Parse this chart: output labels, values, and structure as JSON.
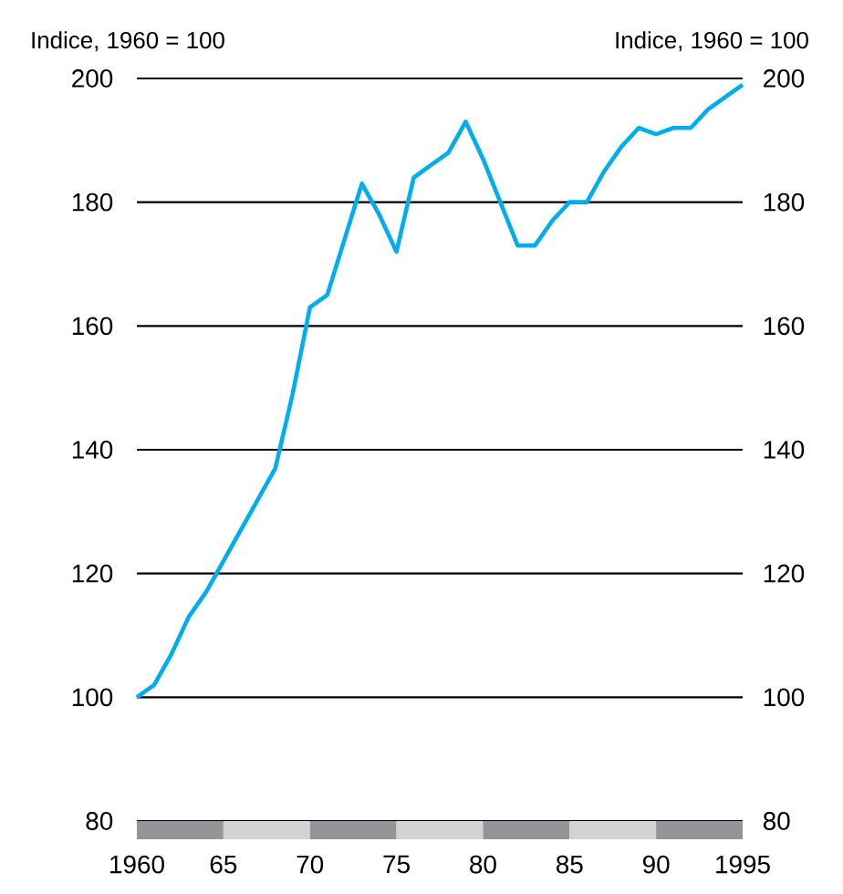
{
  "chart_data": {
    "type": "line",
    "ylabel": "Indice, 1960 = 100",
    "y2label": "Indice, 1960 = 100",
    "x": [
      1960,
      1961,
      1962,
      1963,
      1964,
      1965,
      1966,
      1967,
      1968,
      1969,
      1970,
      1971,
      1972,
      1973,
      1974,
      1975,
      1976,
      1977,
      1978,
      1979,
      1980,
      1981,
      1982,
      1983,
      1984,
      1985,
      1986,
      1987,
      1988,
      1989,
      1990,
      1991,
      1992,
      1993,
      1994,
      1995
    ],
    "series": [
      {
        "color": "#00aeef",
        "values": [
          100,
          102,
          107,
          113,
          117,
          122,
          127,
          132,
          137,
          149,
          163,
          165,
          174,
          183,
          178,
          172,
          184,
          186,
          188,
          193,
          187,
          180,
          173,
          173,
          177,
          180,
          180,
          185,
          189,
          192,
          191,
          192,
          192,
          195,
          197,
          199
        ]
      }
    ],
    "xlim": [
      1960,
      1995
    ],
    "xticks": [
      {
        "value": 1960,
        "label": "1960"
      },
      {
        "value": 1965,
        "label": "65"
      },
      {
        "value": 1970,
        "label": "70"
      },
      {
        "value": 1975,
        "label": "75"
      },
      {
        "value": 1980,
        "label": "80"
      },
      {
        "value": 1985,
        "label": "85"
      },
      {
        "value": 1990,
        "label": "90"
      },
      {
        "value": 1995,
        "label": "1995"
      }
    ],
    "ylim": [
      80,
      200
    ],
    "yticks": [
      80,
      100,
      120,
      140,
      160,
      180,
      200
    ],
    "y2lim": [
      80,
      200
    ],
    "y2ticks": [
      80,
      100,
      120,
      140,
      160,
      180,
      200
    ],
    "grid": "y"
  }
}
